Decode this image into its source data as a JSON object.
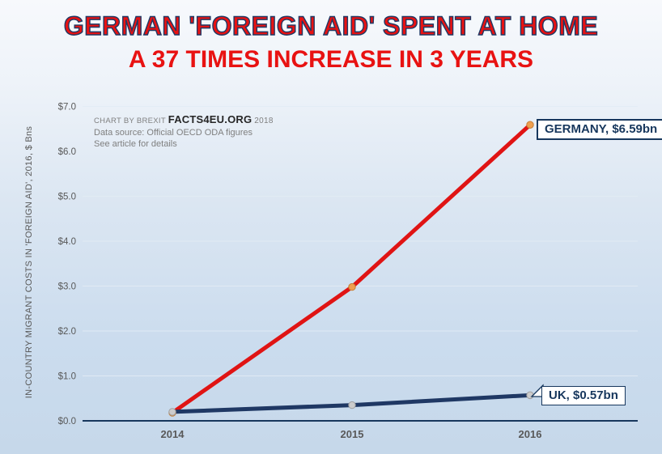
{
  "title": "GERMAN 'FOREIGN AID' SPENT AT HOME",
  "subtitle": "A 37 TIMES INCREASE IN 3 YEARS",
  "annotation": {
    "credit_prefix": "CHART BY BREXIT",
    "credit_brand": "FACTS4EU.ORG",
    "credit_year": "2018",
    "source": "Data source: Official OECD ODA figures",
    "note": "See article for details"
  },
  "colors": {
    "title_red": "#e81212",
    "title_outline_navy": "#203864",
    "germany_line": "#e01414",
    "germany_marker": "#efa050",
    "uk_line": "#1f3864",
    "uk_marker": "#cccccc",
    "axis_navy": "#17375d",
    "gridline": "#e3ecf5",
    "tick_text": "#595959",
    "background_top": "#f7f9fc",
    "background_bottom": "#c6d8ea"
  },
  "chart_data": {
    "type": "line",
    "title": "GERMAN 'FOREIGN AID' SPENT AT HOME — A 37 TIMES INCREASE IN 3 YEARS",
    "xlabel": "",
    "ylabel": "IN-COUNTRY MIGRANT COSTS IN 'FOREIGN AID', 2016, $ Bns",
    "categories": [
      "2014",
      "2015",
      "2016"
    ],
    "series": [
      {
        "name": "GERMANY",
        "values": [
          0.18,
          2.98,
          6.59
        ],
        "label": "GERMANY, $6.59bn",
        "color": "#e01414",
        "marker_color": "#efa050",
        "marker_edge": "#c77f35"
      },
      {
        "name": "UK",
        "values": [
          0.2,
          0.35,
          0.57
        ],
        "label": "UK, $0.57bn",
        "color": "#1f3864",
        "marker_color": "#cccccc",
        "marker_edge": "#9e9e9e"
      }
    ],
    "ylim": [
      0,
      7
    ],
    "yticks": [
      {
        "v": 0,
        "label": "$0.0"
      },
      {
        "v": 1,
        "label": "$1.0"
      },
      {
        "v": 2,
        "label": "$2.0"
      },
      {
        "v": 3,
        "label": "$3.0"
      },
      {
        "v": 4,
        "label": "$4.0"
      },
      {
        "v": 5,
        "label": "$5.0"
      },
      {
        "v": 6,
        "label": "$6.0"
      },
      {
        "v": 7,
        "label": "$7.0"
      }
    ],
    "grid": true,
    "legend_position": "end-of-line data labels"
  }
}
